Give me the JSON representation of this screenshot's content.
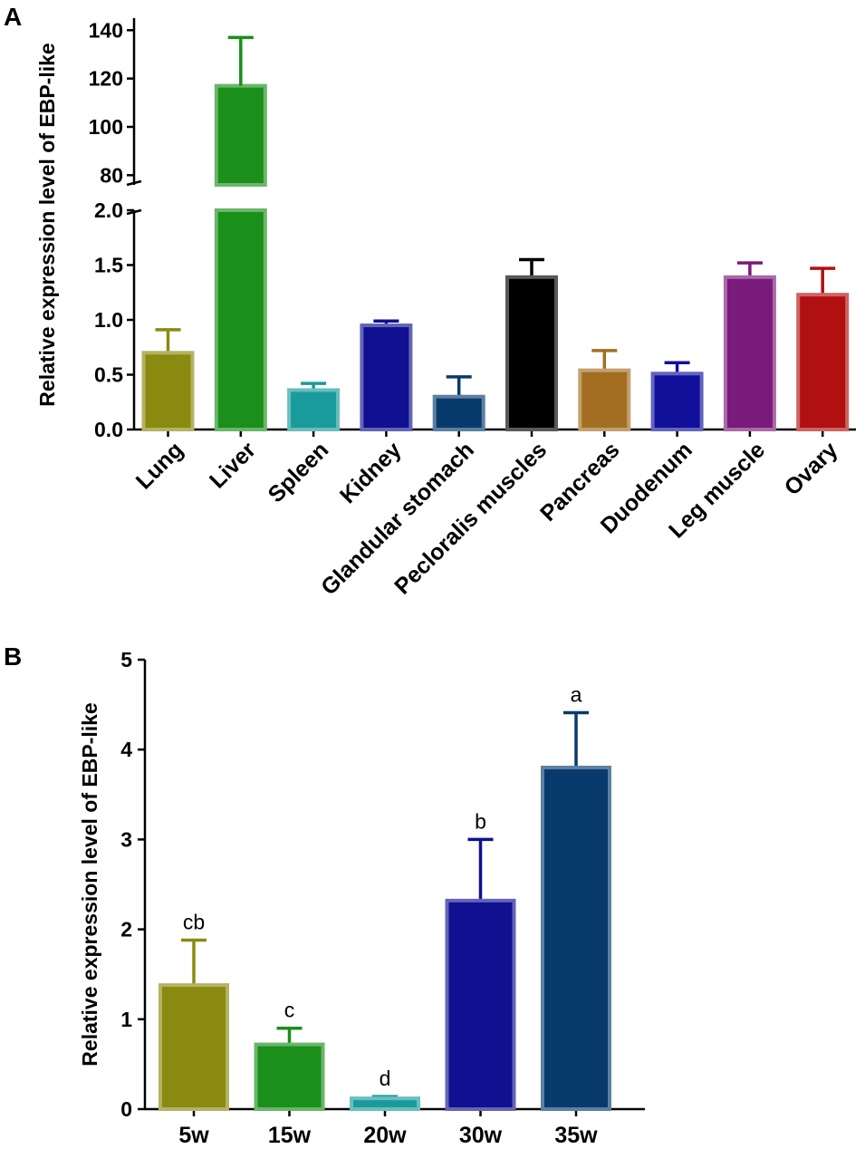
{
  "chart_data": [
    {
      "panel": "A",
      "type": "bar",
      "ylabel": "Relative expression level of EBP-like",
      "broken_axis": true,
      "lower_ylim": [
        0,
        2.0
      ],
      "upper_ylim": [
        76,
        145
      ],
      "lower_ticks": [
        "0.0",
        "0.5",
        "1.0",
        "1.5",
        "2.0"
      ],
      "upper_ticks": [
        "80",
        "100",
        "120",
        "140"
      ],
      "categories": [
        "Lung",
        "Liver",
        "Spleen",
        "Kidney",
        "Glandular stomach",
        "Pecloralis muscles",
        "Pancreas",
        "Duodenum",
        "Leg muscle",
        "Ovary"
      ],
      "values": [
        0.7,
        117,
        0.36,
        0.95,
        0.3,
        1.39,
        0.54,
        0.51,
        1.39,
        1.23
      ],
      "errors": [
        0.21,
        20,
        0.06,
        0.04,
        0.18,
        0.16,
        0.18,
        0.1,
        0.13,
        0.24
      ],
      "colors": [
        "#8a8a10",
        "#1a8f1a",
        "#1a9b9b",
        "#101090",
        "#083a6e",
        "#000000",
        "#a36e22",
        "#10109a",
        "#7a1a7a",
        "#b01010"
      ]
    },
    {
      "panel": "B",
      "type": "bar",
      "ylabel": "Relative expression level of EBP-like",
      "ylim": [
        0,
        5
      ],
      "ticks": [
        "0",
        "1",
        "2",
        "3",
        "4",
        "5"
      ],
      "categories": [
        "5w",
        "15w",
        "20w",
        "30w",
        "35w"
      ],
      "values": [
        1.38,
        0.72,
        0.12,
        2.32,
        3.8
      ],
      "errors": [
        0.5,
        0.18,
        0.02,
        0.68,
        0.61
      ],
      "labels": [
        "cb",
        "c",
        "d",
        "b",
        "a"
      ],
      "colors": [
        "#8a8a10",
        "#1a8f1a",
        "#1a9b9b",
        "#101090",
        "#083a6e"
      ]
    }
  ]
}
